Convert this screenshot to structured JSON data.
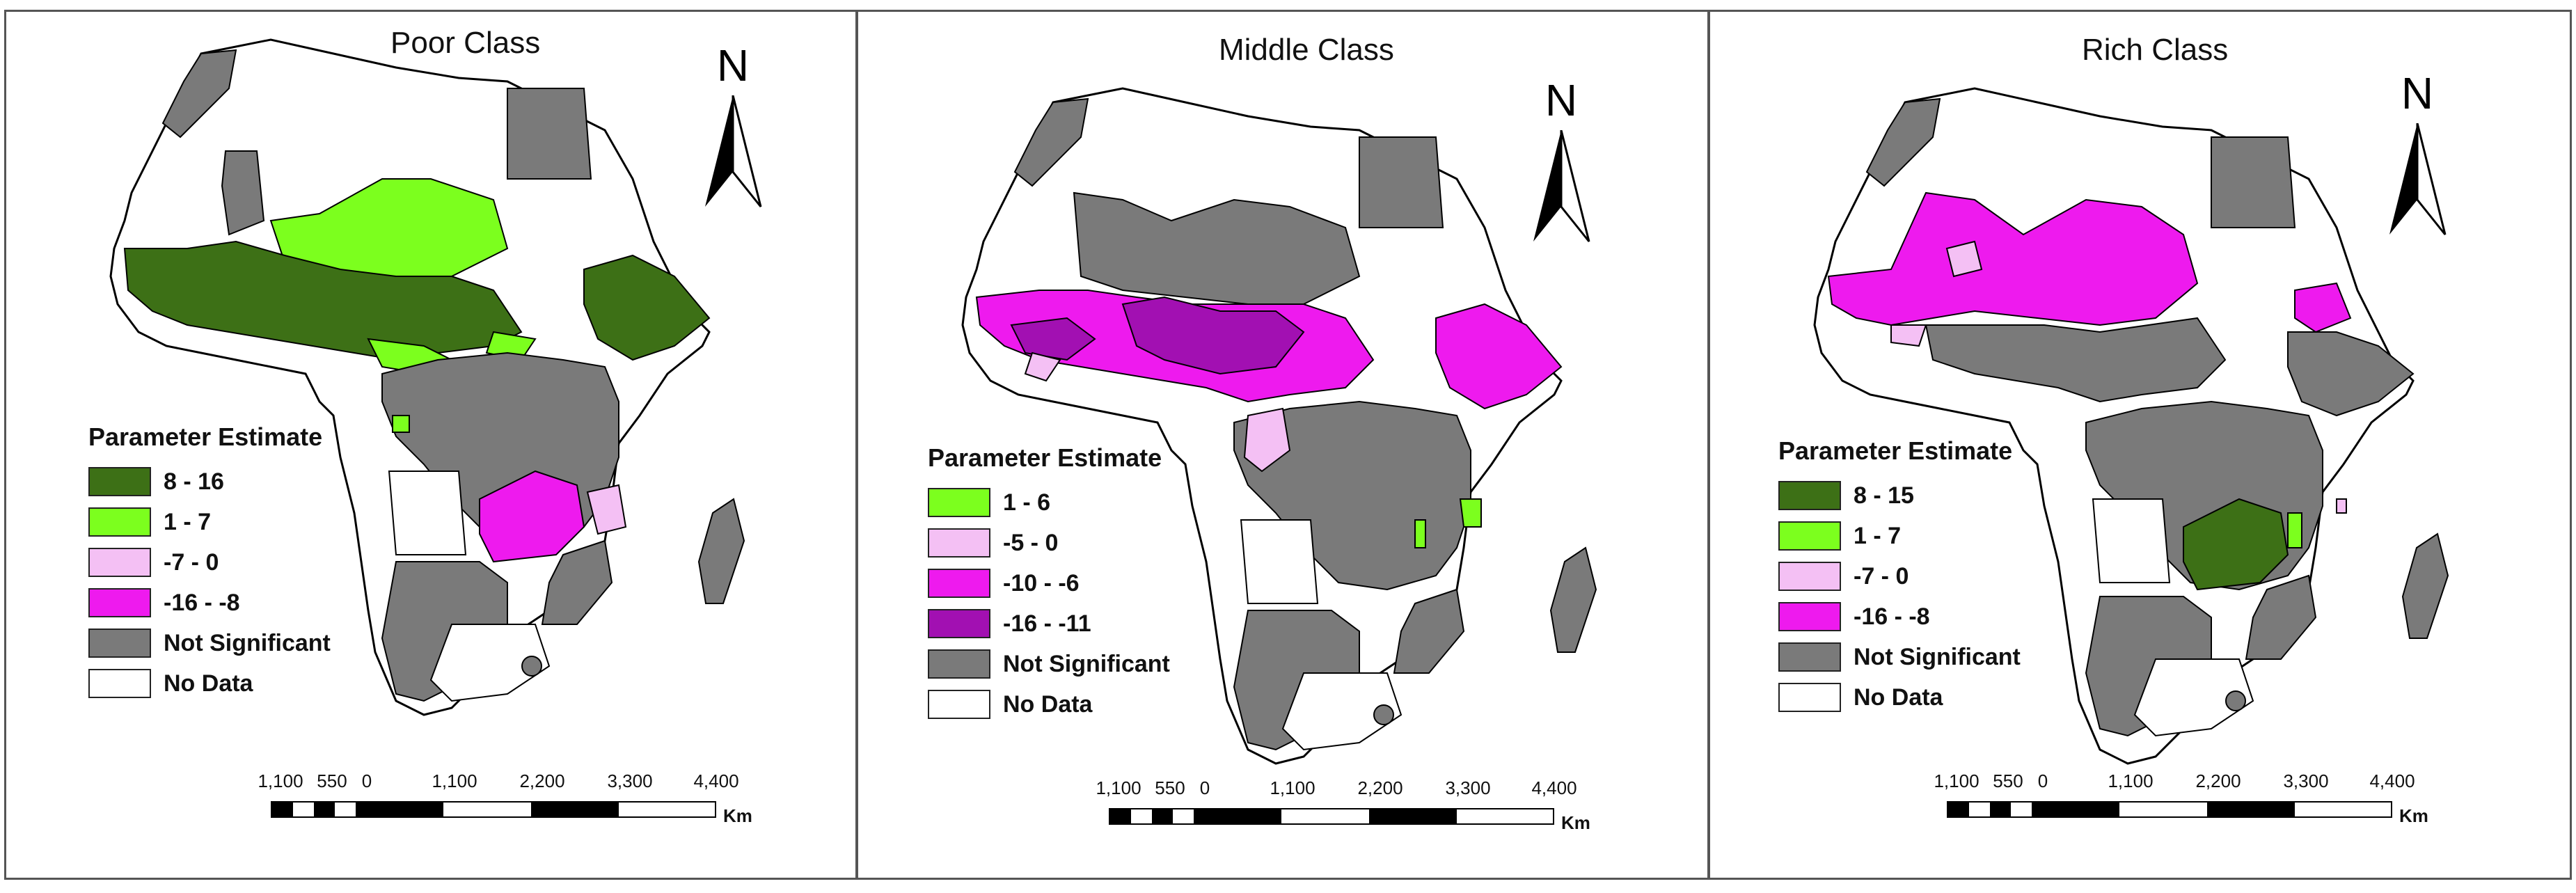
{
  "colors": {
    "dark_green": "#3d7016",
    "light_green": "#7cff1e",
    "light_pink": "#f4c0f4",
    "magenta": "#ee1aee",
    "purple": "#a210b2",
    "not_significant": "#7a7a7a",
    "no_data": "#ffffff",
    "border": "#000000"
  },
  "north_label": "N",
  "panels": [
    {
      "title": "Poor Class",
      "legend_title": "Parameter Estimate",
      "legend": [
        {
          "label": "8 - 16",
          "color": "#3d7016"
        },
        {
          "label": "1 - 7",
          "color": "#7cff1e"
        },
        {
          "label": "-7 - 0",
          "color": "#f4c0f4"
        },
        {
          "label": "-16 - -8",
          "color": "#ee1aee"
        },
        {
          "label": "Not Significant",
          "color": "#7a7a7a"
        },
        {
          "label": "No Data",
          "color": "#ffffff"
        }
      ]
    },
    {
      "title": "Middle Class",
      "legend_title": "Parameter Estimate",
      "legend": [
        {
          "label": "1 - 6",
          "color": "#7cff1e"
        },
        {
          "label": "-5 - 0",
          "color": "#f4c0f4"
        },
        {
          "label": "-10 - -6",
          "color": "#ee1aee"
        },
        {
          "label": "-16 - -11",
          "color": "#a210b2"
        },
        {
          "label": "Not Significant",
          "color": "#7a7a7a"
        },
        {
          "label": "No Data",
          "color": "#ffffff"
        }
      ]
    },
    {
      "title": "Rich Class",
      "legend_title": "Parameter Estimate",
      "legend": [
        {
          "label": "8 - 15",
          "color": "#3d7016"
        },
        {
          "label": "1 - 7",
          "color": "#7cff1e"
        },
        {
          "label": "-7 - 0",
          "color": "#f4c0f4"
        },
        {
          "label": "-16 - -8",
          "color": "#ee1aee"
        },
        {
          "label": "Not Significant",
          "color": "#7a7a7a"
        },
        {
          "label": "No Data",
          "color": "#ffffff"
        }
      ]
    }
  ],
  "scale_bar": {
    "ticks": [
      "1,100",
      "550",
      "0",
      "1,100",
      "2,200",
      "3,300",
      "4,400"
    ],
    "unit": "Km"
  }
}
